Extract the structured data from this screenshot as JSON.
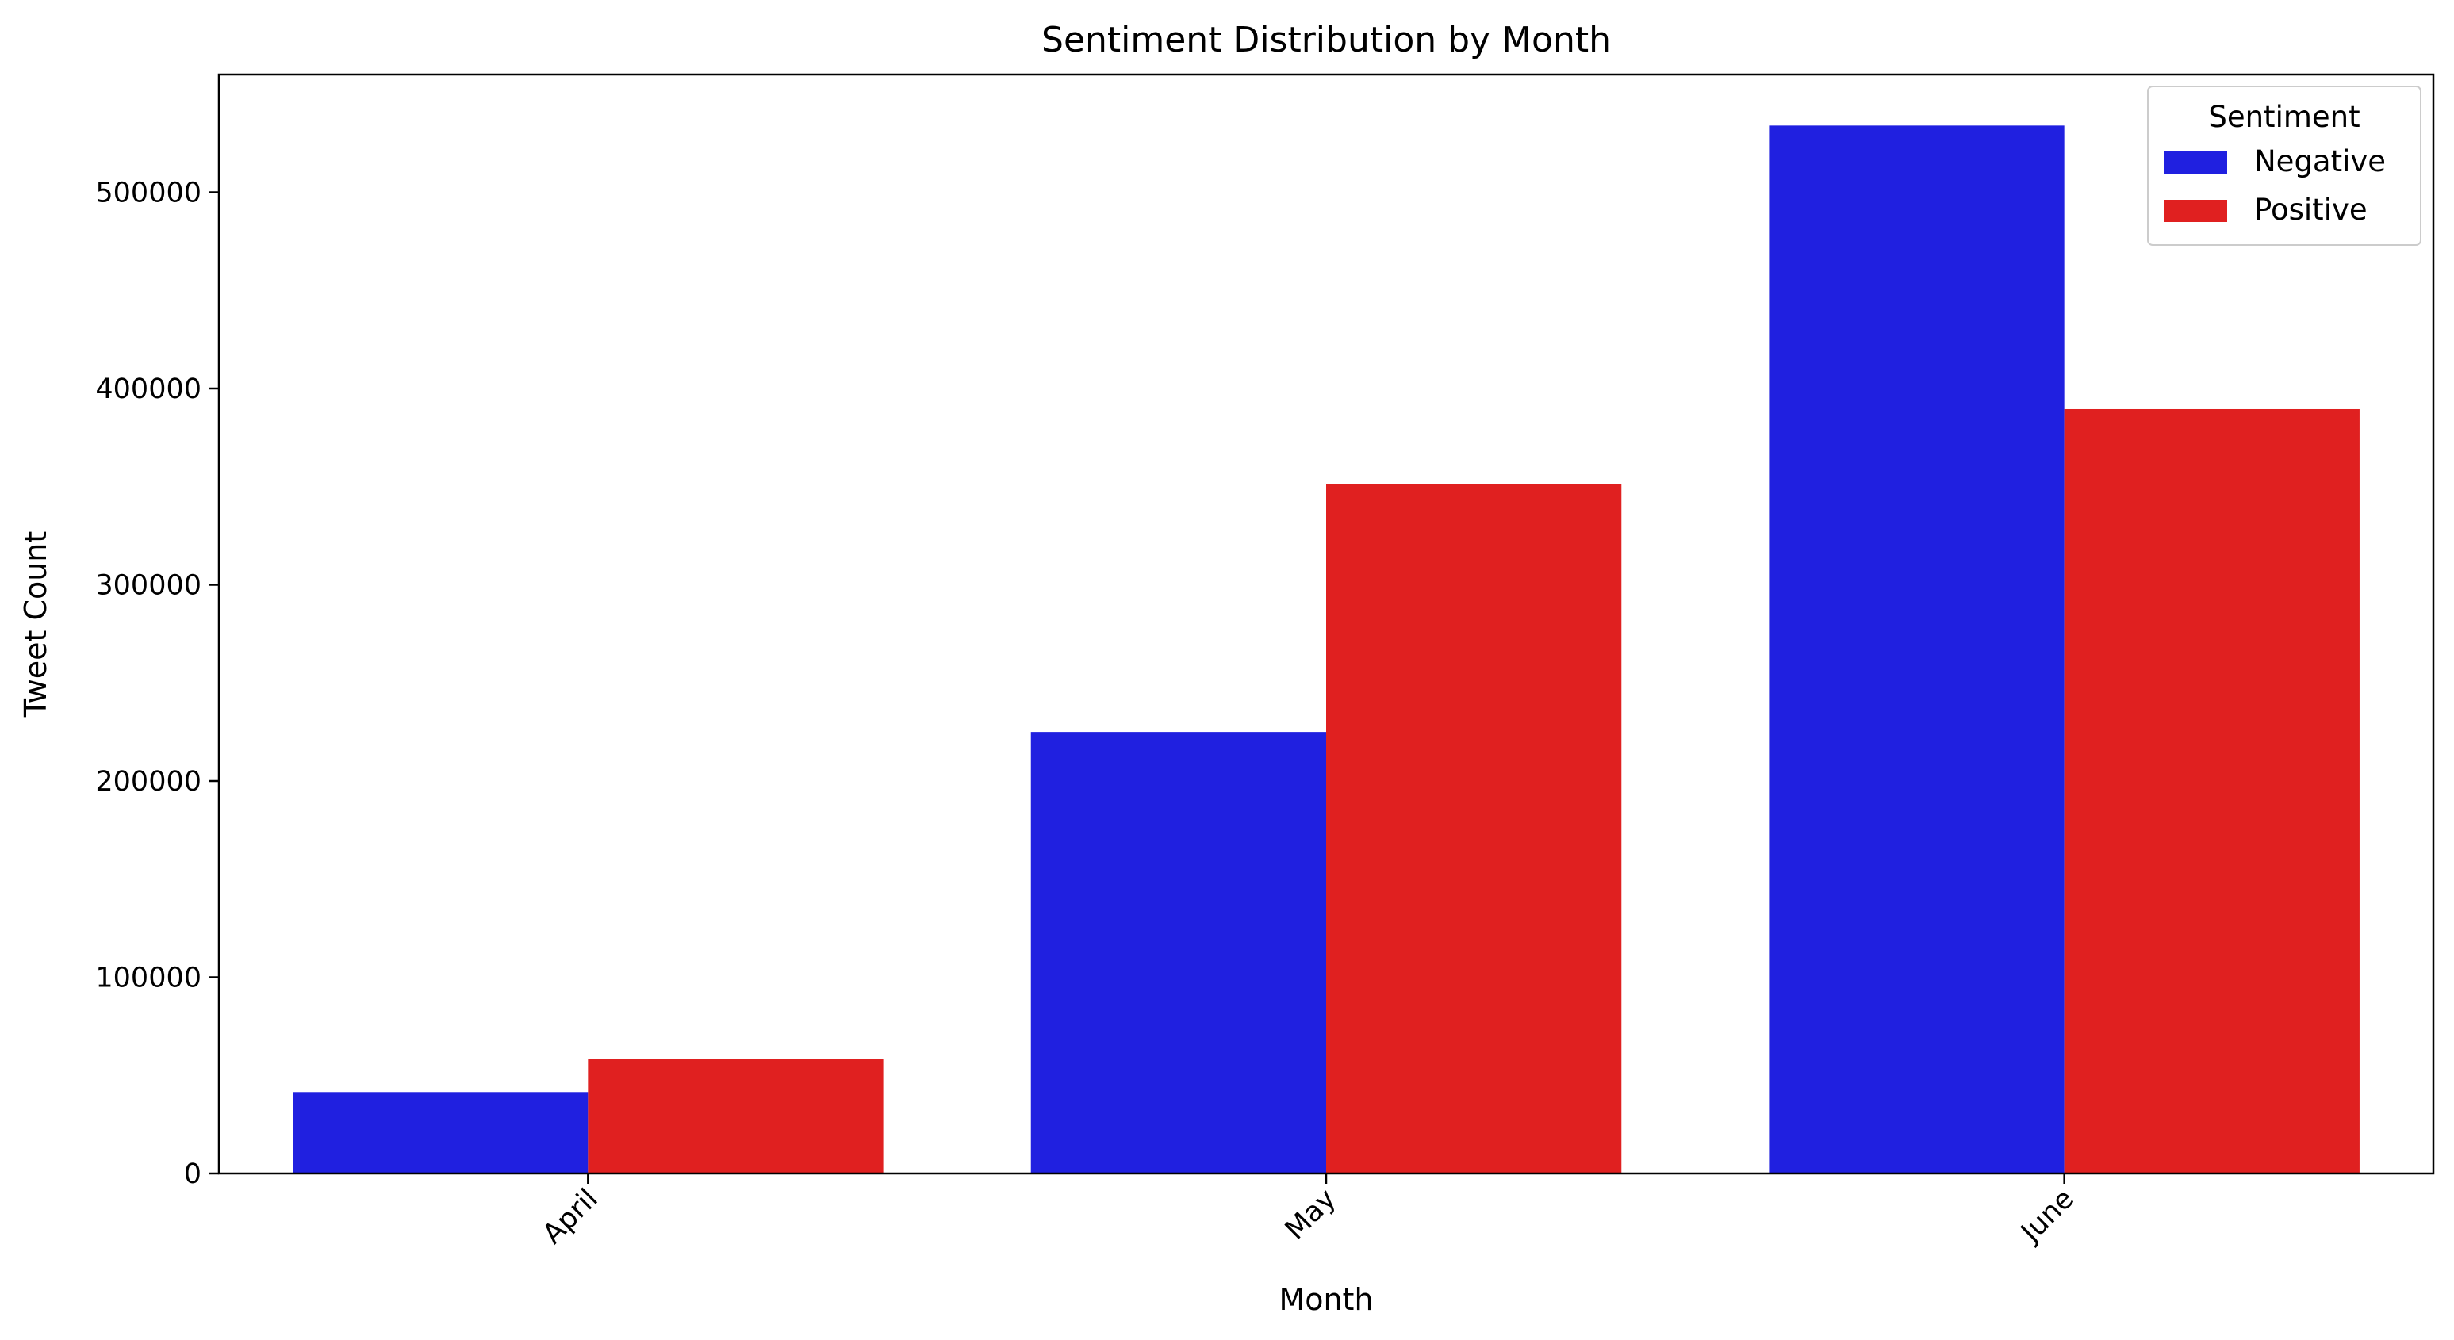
{
  "chart_data": {
    "type": "bar",
    "title": "Sentiment Distribution by Month",
    "xlabel": "Month",
    "ylabel": "Tweet Count",
    "categories": [
      "April",
      "May",
      "June"
    ],
    "series": [
      {
        "name": "Negative",
        "color": "#2020e0",
        "values": [
          41500,
          225000,
          534000
        ]
      },
      {
        "name": "Positive",
        "color": "#e02020",
        "values": [
          58500,
          351500,
          389500
        ]
      }
    ],
    "ylim": [
      0,
      560000
    ],
    "yticks": [
      0,
      100000,
      200000,
      300000,
      400000,
      500000
    ],
    "ytick_labels": [
      "0",
      "100000",
      "200000",
      "300000",
      "400000",
      "500000"
    ],
    "grid": false,
    "legend": {
      "title": "Sentiment",
      "placement": "top-right"
    }
  }
}
